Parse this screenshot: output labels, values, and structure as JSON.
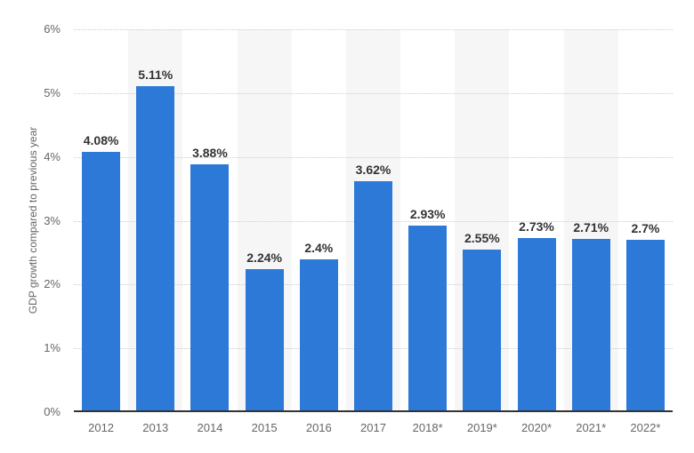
{
  "chart_data": {
    "type": "bar",
    "title": "",
    "xlabel": "",
    "ylabel": "GDP growth compared to previous year",
    "categories": [
      "2012",
      "2013",
      "2014",
      "2015",
      "2016",
      "2017",
      "2018*",
      "2019*",
      "2020*",
      "2021*",
      "2022*"
    ],
    "values": [
      4.08,
      5.11,
      3.88,
      2.24,
      2.4,
      3.62,
      2.93,
      2.55,
      2.73,
      2.71,
      2.7
    ],
    "value_labels": [
      "4.08%",
      "5.11%",
      "3.88%",
      "2.24%",
      "2.4%",
      "3.62%",
      "2.93%",
      "2.55%",
      "2.73%",
      "2.71%",
      "2.7%"
    ],
    "ylim": [
      0,
      6
    ],
    "y_tick_labels_top_to_bottom": [
      "6%",
      "5%",
      "4%",
      "3%",
      "2%",
      "1%",
      "0%"
    ],
    "grid": "horizontal-dotted",
    "legend": "none",
    "plot_band_category_indices": [
      1,
      3,
      5,
      7,
      9
    ],
    "colors": {
      "bar": "#2d79d8",
      "plot_band": "#f6f6f6",
      "gridline": "#cccccc",
      "axis_line": "#333333",
      "tick_label": "#666666",
      "value_label": "#333333",
      "background": "#ffffff"
    }
  }
}
